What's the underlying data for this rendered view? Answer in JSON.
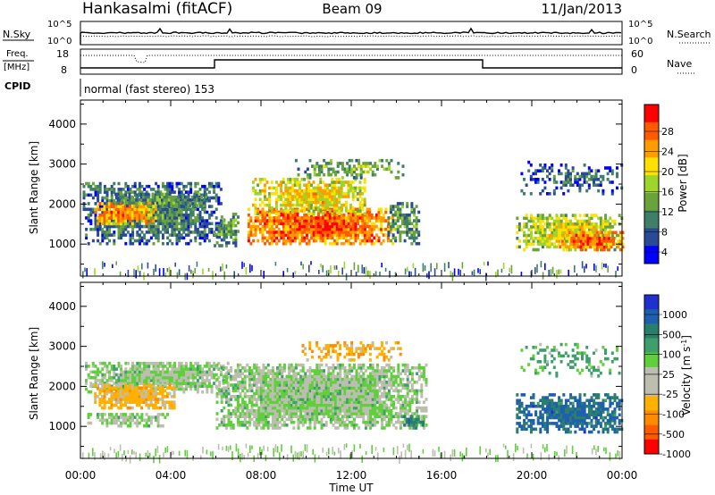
{
  "header": {
    "station": "Hankasalmi (fitACF)",
    "beam": "Beam 09",
    "date": "11/Jan/2013"
  },
  "top_panels": {
    "nsky_label": "N.Sky",
    "nsearch_label": "N.Search",
    "noise_ticks": [
      "10^5",
      "10^0"
    ],
    "freq_label_1": "Freq.",
    "freq_label_2": "[MHz]",
    "freq_ticks": [
      "18",
      "8"
    ],
    "nave_label": "Nave",
    "nave_ticks": [
      "60",
      "0"
    ],
    "cpid_label": "CPID",
    "cpid_text": "normal (fast stereo) 153"
  },
  "colors": {
    "power_scale": [
      "#0000ff",
      "#2a4a96",
      "#3f7f6a",
      "#6aa23c",
      "#9dd52a",
      "#ffe000",
      "#ff9c00",
      "#ff5a00",
      "#ff0000"
    ],
    "velocity_scale": [
      "#ff0000",
      "#ff5a00",
      "#ff8c00",
      "#ffb000",
      "#bdbdb0",
      "#bdbdb0",
      "#5fd03c",
      "#3f9f6a",
      "#2a7f6a",
      "#1f5fb0",
      "#2030d0"
    ]
  },
  "chart_data": [
    {
      "type": "heatmap",
      "name": "power",
      "ylabel": "Slant Range [km]",
      "yticks": [
        "4000",
        "3000",
        "2000",
        "1000"
      ],
      "ylim": [
        200,
        4600
      ],
      "colorbar_label": "Power [dB]",
      "colorbar_ticks": [
        "28",
        "24",
        "20",
        "16",
        "12",
        "8",
        "4"
      ],
      "colorbar_range": [
        0,
        30
      ],
      "blobs": [
        {
          "t0": 0.1,
          "t1": 6.2,
          "r0": 1050,
          "r1": 2600,
          "c": 10,
          "d": 0.8
        },
        {
          "t0": 0.6,
          "t1": 3.3,
          "r0": 1550,
          "r1": 2100,
          "c": 24,
          "d": 0.9
        },
        {
          "t0": 1.5,
          "t1": 5.8,
          "r0": 2000,
          "r1": 2350,
          "c": 12,
          "d": 0.7
        },
        {
          "t0": 5.9,
          "t1": 7.0,
          "r0": 1000,
          "r1": 1800,
          "c": 12,
          "d": 0.7
        },
        {
          "t0": 7.4,
          "t1": 13.8,
          "r0": 1050,
          "r1": 1950,
          "c": 26,
          "d": 0.95
        },
        {
          "t0": 7.6,
          "t1": 12.6,
          "r0": 1800,
          "r1": 2700,
          "c": 20,
          "d": 0.75
        },
        {
          "t0": 9.5,
          "t1": 14.4,
          "r0": 2700,
          "r1": 3150,
          "c": 14,
          "d": 0.5
        },
        {
          "t0": 13.6,
          "t1": 15.0,
          "r0": 1050,
          "r1": 2100,
          "c": 12,
          "d": 0.6
        },
        {
          "t0": 19.3,
          "t1": 24.0,
          "r0": 900,
          "r1": 1800,
          "c": 18,
          "d": 0.8
        },
        {
          "t0": 21.2,
          "t1": 24.0,
          "r0": 900,
          "r1": 1350,
          "c": 26,
          "d": 0.85
        },
        {
          "t0": 19.5,
          "t1": 24.0,
          "r0": 2300,
          "r1": 3100,
          "c": 8,
          "d": 0.35
        }
      ]
    },
    {
      "type": "heatmap",
      "name": "velocity",
      "ylabel": "Slant Range [km]",
      "yticks": [
        "4000",
        "3000",
        "2000",
        "1000"
      ],
      "ylim": [
        200,
        4600
      ],
      "colorbar_label": "Velocity [m s^-1]",
      "colorbar_ticks": [
        "1000",
        "500",
        "100",
        "25",
        "-25",
        "-100",
        "-500",
        "-1000"
      ],
      "blobs": [
        {
          "t0": 0.2,
          "t1": 6.5,
          "r0": 1900,
          "r1": 2650,
          "c": 0,
          "d": 0.85
        },
        {
          "t0": 0.5,
          "t1": 4.2,
          "r0": 1500,
          "r1": 2100,
          "c": -150,
          "d": 0.85
        },
        {
          "t0": 0.3,
          "t1": 4.0,
          "r0": 1050,
          "r1": 1400,
          "c": 0,
          "d": 0.6
        },
        {
          "t0": 6.0,
          "t1": 15.3,
          "r0": 1000,
          "r1": 2600,
          "c": 0,
          "d": 0.95
        },
        {
          "t0": 9.8,
          "t1": 14.2,
          "r0": 2700,
          "r1": 3200,
          "c": -200,
          "d": 0.45
        },
        {
          "t0": 14.2,
          "t1": 15.2,
          "r0": 1000,
          "r1": 1300,
          "c": 150,
          "d": 0.8
        },
        {
          "t0": 19.3,
          "t1": 24.0,
          "r0": 900,
          "r1": 1850,
          "c": 300,
          "d": 0.8
        },
        {
          "t0": 19.5,
          "t1": 24.0,
          "r0": 2300,
          "r1": 3100,
          "c": 40,
          "d": 0.3
        }
      ]
    }
  ],
  "xaxis": {
    "label": "Time UT",
    "ticks": [
      "00:00",
      "04:00",
      "08:00",
      "12:00",
      "16:00",
      "20:00",
      "00:00"
    ],
    "range_hours": [
      0,
      24
    ]
  }
}
